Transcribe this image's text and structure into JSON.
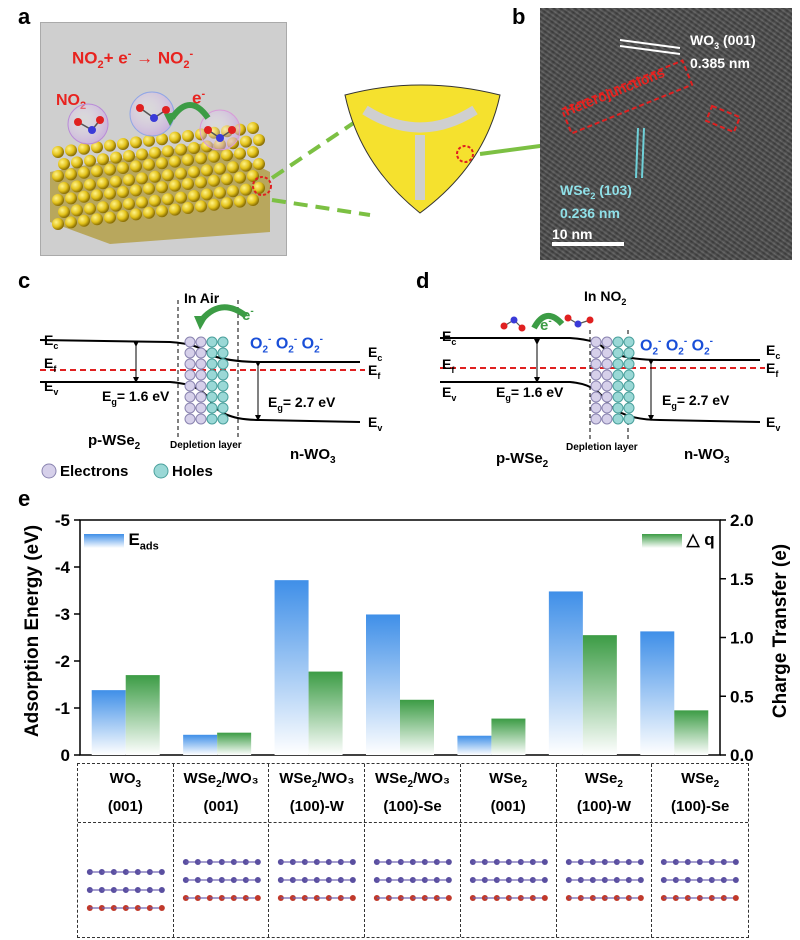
{
  "panels": {
    "a": {
      "label": "a",
      "reaction_lhs": "NO",
      "reaction_lhs_sub": "2",
      "reaction_mid": "+ e",
      "reaction_mid_sup": "-",
      "reaction_rhs": "NO",
      "reaction_rhs_sub": "2",
      "reaction_rhs_sup": "-",
      "no2_label": "NO",
      "no2_label_sub": "2",
      "electron_label": "e",
      "electron_label_sup": "-"
    },
    "b": {
      "label": "b",
      "wo3_label": "WO",
      "wo3_sub": "3",
      "wo3_plane": "(001)",
      "wo3_spacing": "0.385 nm",
      "heterojunction_label": "Heterojunctions",
      "wse2_label": "WSe",
      "wse2_sub": "2",
      "wse2_plane": "(103)",
      "wse2_spacing": "0.236 nm",
      "scalebar": "10 nm"
    },
    "c": {
      "label": "c",
      "title": "In Air",
      "ec": "E",
      "ec_sub": "c",
      "ef": "E",
      "ef_sub": "f",
      "ev": "E",
      "ev_sub": "v",
      "eg_left": "E",
      "eg_left_sub": "g",
      "eg_left_val": "= 1.6 eV",
      "eg_right": "E",
      "eg_right_sub": "g",
      "eg_right_val": "= 2.7 eV",
      "o2": "O",
      "o2_sub": "2",
      "o2_sup": "-",
      "electron": "e",
      "electron_sup": "-",
      "p_type": "p-WSe",
      "p_type_sub": "2",
      "depletion": "Depletion  layer",
      "n_type": "n-WO",
      "n_type_sub": "3",
      "legend_electrons": "Electrons",
      "legend_holes": "Holes"
    },
    "d": {
      "label": "d",
      "title": "In NO",
      "title_sub": "2",
      "electron": "e",
      "electron_sup": "-",
      "p_type": "p-WSe",
      "p_type_sub": "2",
      "depletion": "Depletion  layer",
      "n_type": "n-WO",
      "n_type_sub": "3"
    },
    "e": {
      "label": "e",
      "legend_eads": "E",
      "legend_eads_sub": "ads",
      "legend_dq": "△ q",
      "columns": [
        {
          "line1": "WO",
          "line1_sub": "3",
          "line1_rest": "",
          "line2": "(001)"
        },
        {
          "line1": "WSe",
          "line1_sub": "2",
          "line1_rest": "/WO₃",
          "line2": "(001)"
        },
        {
          "line1": "WSe",
          "line1_sub": "2",
          "line1_rest": "/WO₃",
          "line2": "(100)-W"
        },
        {
          "line1": "WSe",
          "line1_sub": "2",
          "line1_rest": "/WO₃",
          "line2": "(100)-Se"
        },
        {
          "line1": "WSe",
          "line1_sub": "2",
          "line1_rest": "",
          "line2": "(001)"
        },
        {
          "line1": "WSe",
          "line1_sub": "2",
          "line1_rest": "",
          "line2": "(100)-W"
        },
        {
          "line1": "WSe",
          "line1_sub": "2",
          "line1_rest": "",
          "line2": "(100)-Se"
        }
      ]
    }
  },
  "chart_data": {
    "type": "bar",
    "categories": [
      "WO3 (001)",
      "WSe2/WO3 (001)",
      "WSe2/WO3 (100)-W",
      "WSe2/WO3 (100)-Se",
      "WSe2 (001)",
      "WSe2 (100)-W",
      "WSe2 (100)-Se"
    ],
    "series": [
      {
        "name": "Eads",
        "axis": "left",
        "color": "#3f8fe8",
        "values": [
          -1.38,
          -0.43,
          -3.72,
          -2.99,
          -0.41,
          -3.48,
          -2.63
        ]
      },
      {
        "name": "△ q",
        "axis": "right",
        "color": "#3c9c45",
        "values": [
          0.68,
          0.19,
          0.71,
          0.47,
          0.31,
          1.02,
          0.38
        ]
      }
    ],
    "ylabel": "Adsorption Energy (eV)",
    "y2label": "Charge Transfer (e)",
    "ylim": [
      0,
      -5
    ],
    "y2lim": [
      0,
      2.0
    ],
    "yticks": [
      "0",
      "-1",
      "-2",
      "-3",
      "-4",
      "-5"
    ],
    "y2ticks": [
      "0.0",
      "0.5",
      "1.0",
      "1.5",
      "2.0"
    ],
    "grid": false,
    "legend": "top-left and top-right"
  }
}
